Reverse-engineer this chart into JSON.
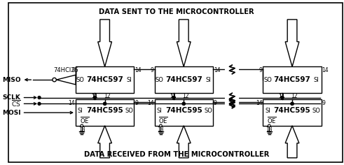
{
  "title_top": "DATA SENT TO THE MICROCONTROLLER",
  "title_bottom": "DATA RECEIVED FROM THE MICROCONTROLLER",
  "bg_color": "#ffffff",
  "text_color": "#000000",
  "buffer_label": "74HCl25",
  "chip597": "74HC597",
  "chip595": "74HC595",
  "signals": [
    "MISO",
    "SCLK",
    "CS",
    "MOSI"
  ],
  "figsize": [
    4.91,
    2.36
  ],
  "dpi": 100
}
